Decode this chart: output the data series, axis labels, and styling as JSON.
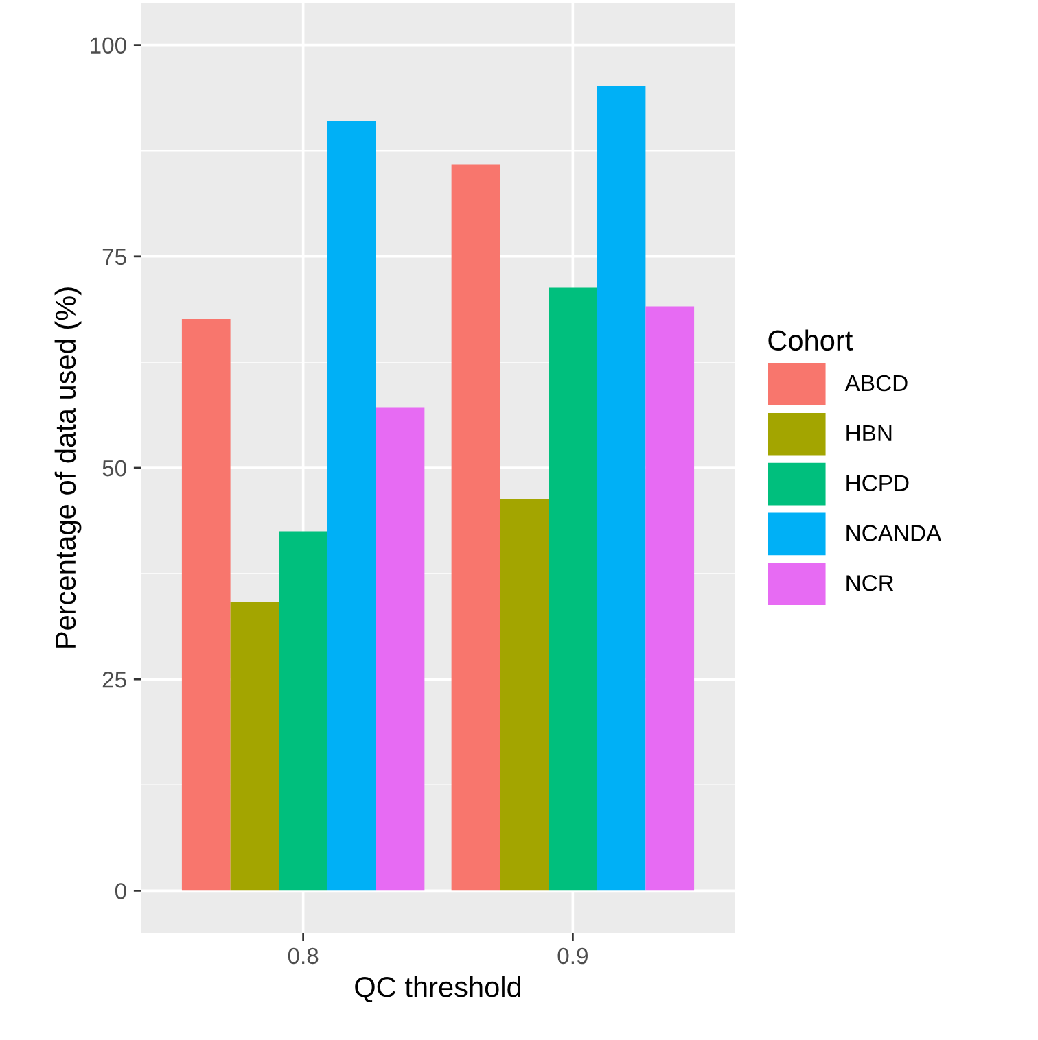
{
  "chart_data": {
    "type": "bar",
    "xlabel": "QC threshold",
    "ylabel": "Percentage of data used (%)",
    "legend_title": "Cohort",
    "categories": [
      "0.8",
      "0.9"
    ],
    "series": [
      {
        "name": "ABCD",
        "color": "#f8766d",
        "values": [
          67.6,
          85.9
        ]
      },
      {
        "name": "HBN",
        "color": "#a3a500",
        "values": [
          34.1,
          46.3
        ]
      },
      {
        "name": "HCPD",
        "color": "#00bf7d",
        "values": [
          42.5,
          71.3
        ]
      },
      {
        "name": "NCANDA",
        "color": "#00b0f6",
        "values": [
          91.0,
          95.1
        ]
      },
      {
        "name": "NCR",
        "color": "#e76bf3",
        "values": [
          57.1,
          69.1
        ]
      }
    ],
    "ylim": [
      -5,
      105
    ],
    "yticks": [
      0,
      25,
      50,
      75,
      100
    ],
    "grid": true,
    "legend": "right"
  }
}
